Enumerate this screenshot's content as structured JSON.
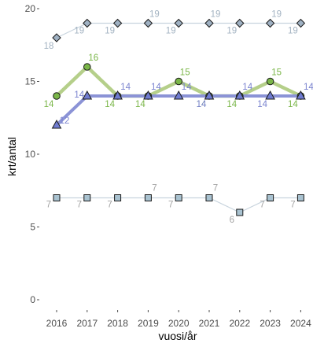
{
  "chart_data": {
    "type": "line",
    "xlabel": "vuosi/år",
    "ylabel": "krt/antal",
    "x": [
      "2016",
      "2017",
      "2018",
      "2019",
      "2020",
      "2021",
      "2022",
      "2023",
      "2024"
    ],
    "ylim": [
      0,
      20
    ],
    "yticks": [
      0,
      5,
      10,
      15,
      20
    ],
    "grid": false,
    "legend": "none",
    "series": [
      {
        "values": [
          18,
          19,
          19,
          19,
          19,
          19,
          19,
          19,
          19
        ],
        "marker": "diamond",
        "line_color": "#c8d4de",
        "marker_fill": "#9fb1c3",
        "label_color": "#a3b3c2"
      },
      {
        "values": [
          14,
          16,
          14,
          14,
          15,
          14,
          14,
          15,
          14
        ],
        "marker": "circle",
        "line_color": "#b5cf8a",
        "marker_fill": "#7ab648",
        "label_color": "#7ab648"
      },
      {
        "values": [
          12,
          14,
          14,
          14,
          14,
          14,
          14,
          14,
          14
        ],
        "marker": "triangle",
        "line_color": "#8b93d6",
        "marker_fill": "#6f7bd0",
        "label_color": "#7a83cf"
      },
      {
        "values": [
          7,
          7,
          7,
          7,
          7,
          7,
          6,
          7,
          7
        ],
        "marker": "square",
        "line_color": "#c8d4de",
        "marker_fill": "#a9c2d0",
        "label_color": "#a3a3a3"
      }
    ]
  }
}
